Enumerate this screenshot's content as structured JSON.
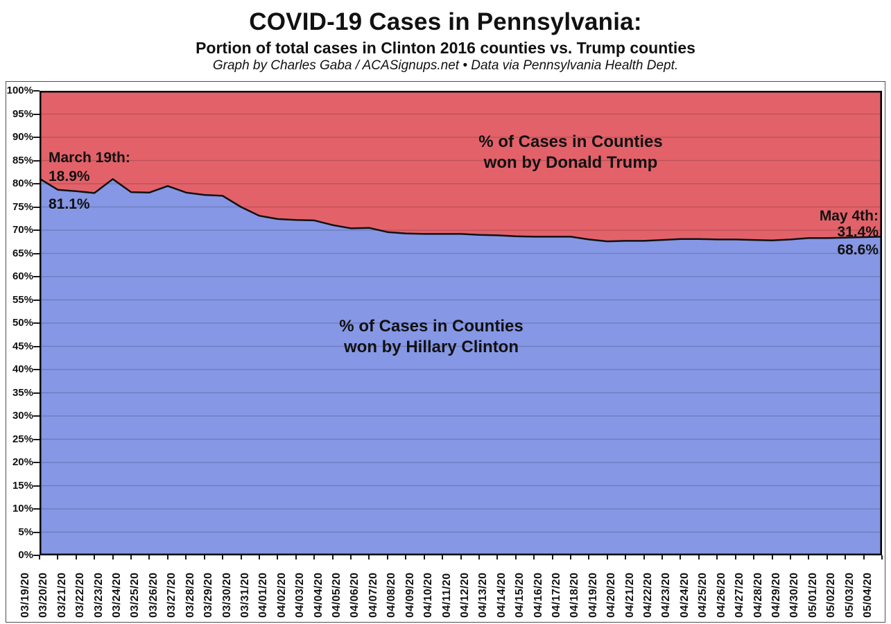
{
  "header": {
    "title": "COVID-19 Cases in Pennsylvania:",
    "subtitle": "Portion of total cases in Clinton 2016 counties vs. Trump counties",
    "credit": "Graph by Charles Gaba / ACASignups.net  •  Data via Pennsylvania Health Dept."
  },
  "annotations": {
    "march19": {
      "title": "March 19th:",
      "trump_value": "18.9%",
      "clinton_value": "81.1%"
    },
    "may4": {
      "title": "May 4th:",
      "trump_value": "31.4%",
      "clinton_value": "68.6%"
    }
  },
  "area_labels": {
    "trump": [
      "% of Cases in Counties",
      "won by Donald Trump"
    ],
    "clinton": [
      "% of Cases in Counties",
      "won by Hillary Clinton"
    ]
  },
  "colors": {
    "trump_area": "#e3626a",
    "clinton_area": "#8697e5",
    "boundary_line": "#111111",
    "gridline": "rgba(0,0,0,0.16)",
    "plot_border": "#000000"
  },
  "y_axis": {
    "labels": [
      "100%",
      "95%",
      "90%",
      "85%",
      "80%",
      "75%",
      "70%",
      "65%",
      "60%",
      "55%",
      "50%",
      "45%",
      "40%",
      "35%",
      "30%",
      "25%",
      "20%",
      "15%",
      "10%",
      "5%",
      "0%"
    ]
  },
  "chart_data": {
    "type": "area",
    "stacked_percent": true,
    "title": "COVID-19 Cases in Pennsylvania: Portion of total cases in Clinton 2016 counties vs. Trump counties",
    "xlabel": "",
    "ylabel": "",
    "ylim": [
      0,
      100
    ],
    "ytick_step": 5,
    "grid": "horizontal",
    "legend_position": "in-chart text labels",
    "x": [
      "03/19/20",
      "03/20/20",
      "03/21/20",
      "03/22/20",
      "03/23/20",
      "03/24/20",
      "03/25/20",
      "03/26/20",
      "03/27/20",
      "03/28/20",
      "03/29/20",
      "03/30/20",
      "03/31/20",
      "04/01/20",
      "04/02/20",
      "04/03/20",
      "04/04/20",
      "04/05/20",
      "04/06/20",
      "04/07/20",
      "04/08/20",
      "04/09/20",
      "04/10/20",
      "04/11/20",
      "04/12/20",
      "04/13/20",
      "04/14/20",
      "04/15/20",
      "04/16/20",
      "04/17/20",
      "04/18/20",
      "04/19/20",
      "04/20/20",
      "04/21/20",
      "04/22/20",
      "04/23/20",
      "04/24/20",
      "04/25/20",
      "04/26/20",
      "04/27/20",
      "04/28/20",
      "04/29/20",
      "04/30/20",
      "05/01/20",
      "05/02/20",
      "05/03/20",
      "05/04/20"
    ],
    "series": [
      {
        "name": "% of Cases in Counties won by Hillary Clinton",
        "color": "#8697e5",
        "values": [
          81.1,
          78.7,
          78.4,
          78.0,
          81.0,
          78.2,
          78.1,
          79.5,
          78.1,
          77.6,
          77.4,
          75.0,
          73.1,
          72.4,
          72.2,
          72.1,
          71.1,
          70.4,
          70.5,
          69.6,
          69.3,
          69.2,
          69.2,
          69.2,
          69.0,
          68.9,
          68.7,
          68.6,
          68.6,
          68.6,
          68.0,
          67.6,
          67.7,
          67.7,
          67.9,
          68.1,
          68.1,
          68.0,
          68.0,
          67.9,
          67.8,
          68.0,
          68.3,
          68.3,
          68.4,
          68.5,
          68.6
        ]
      },
      {
        "name": "% of Cases in Counties won by Donald Trump",
        "color": "#e3626a",
        "values": [
          18.9,
          21.3,
          21.6,
          22.0,
          19.0,
          21.8,
          21.9,
          20.5,
          21.9,
          22.4,
          22.6,
          25.0,
          26.9,
          27.6,
          27.8,
          27.9,
          28.9,
          29.6,
          29.5,
          30.4,
          30.7,
          30.8,
          30.8,
          30.8,
          31.0,
          31.1,
          31.3,
          31.4,
          31.4,
          31.4,
          32.0,
          32.4,
          32.3,
          32.3,
          32.1,
          31.9,
          31.9,
          32.0,
          32.0,
          32.1,
          32.2,
          32.0,
          31.7,
          31.7,
          31.6,
          31.5,
          31.4
        ]
      }
    ]
  }
}
